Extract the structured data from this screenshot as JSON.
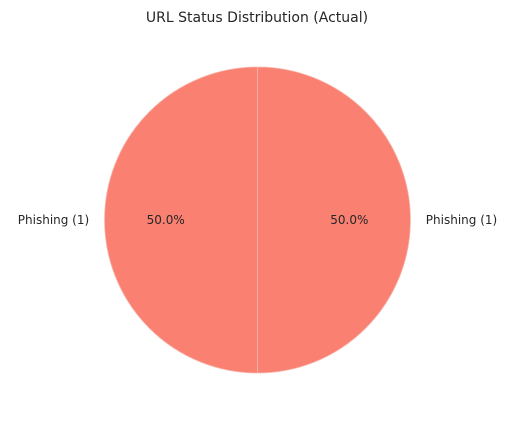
{
  "chart_data": {
    "type": "pie",
    "title": "URL Status Distribution (Actual)",
    "categories": [
      "Phishing (1)",
      "Phishing (1)"
    ],
    "values": [
      1,
      1
    ],
    "percent_labels": [
      "50.0%",
      "50.0%"
    ],
    "colors": [
      "#fa8072",
      "#fa8072"
    ],
    "edge_color": "#f6b4aa",
    "legend": "none"
  }
}
